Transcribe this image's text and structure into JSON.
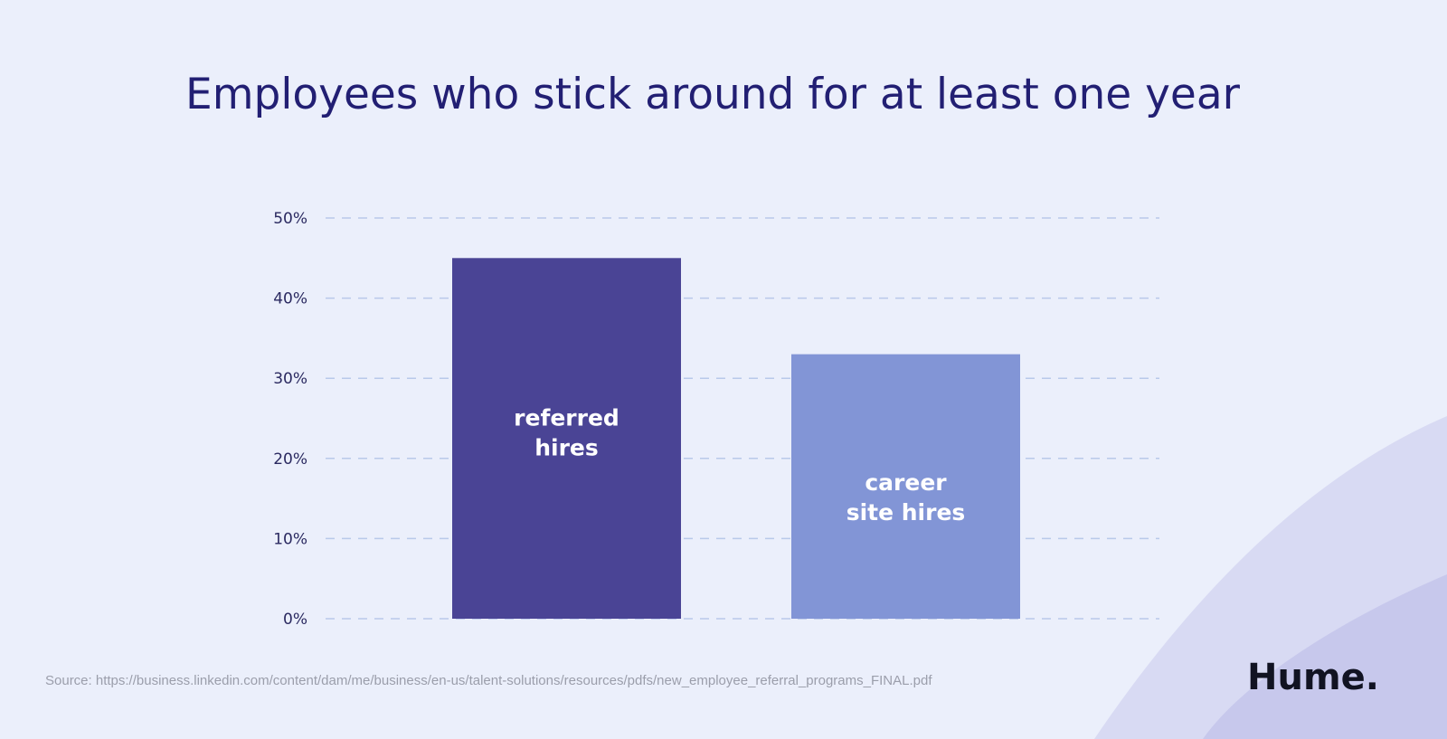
{
  "chart_data": {
    "type": "bar",
    "title": "Employees who stick around for at least one year",
    "categories": [
      "referred hires",
      "career site hires"
    ],
    "category_lines": [
      [
        "referred",
        "hires"
      ],
      [
        "career",
        "site hires"
      ]
    ],
    "values": [
      45,
      33
    ],
    "unit": "%",
    "ylim": [
      0,
      50
    ],
    "yticks": [
      0,
      10,
      20,
      30,
      40,
      50
    ],
    "ytick_labels": [
      "0%",
      "10%",
      "20%",
      "30%",
      "40%",
      "50%"
    ],
    "grid": true,
    "colors": [
      "#4a4495",
      "#8295d6"
    ],
    "legend": "none"
  },
  "source": "Source: https://business.linkedin.com/content/dam/me/business/en-us/talent-solutions/resources/pdfs/new_employee_referral_programs_FINAL.pdf",
  "logo": "Hume."
}
